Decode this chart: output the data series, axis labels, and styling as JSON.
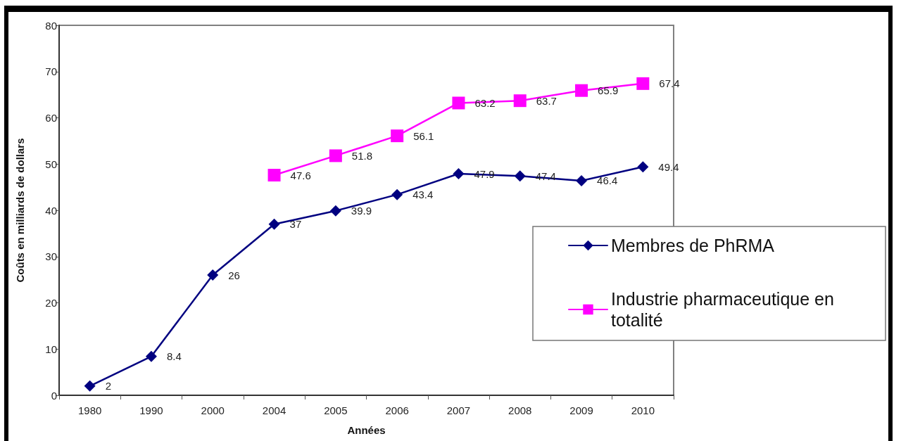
{
  "chart_data": {
    "type": "line",
    "xlabel": "Années",
    "ylabel": "Coûts en milliards de dollars",
    "categories": [
      "1980",
      "1990",
      "2000",
      "2004",
      "2005",
      "2006",
      "2007",
      "2008",
      "2009",
      "2010"
    ],
    "series": [
      {
        "name": "Membres de PhRMA",
        "color": "#000080",
        "marker": "diamond",
        "values": [
          2,
          8.4,
          26,
          37,
          39.9,
          43.4,
          47.9,
          47.4,
          46.4,
          49.4
        ]
      },
      {
        "name": "Industrie pharmaceutique en totalité",
        "color": "#ff00ff",
        "marker": "square",
        "values": [
          null,
          null,
          null,
          47.6,
          51.8,
          56.1,
          63.2,
          63.7,
          65.9,
          67.4
        ]
      }
    ],
    "ylim": [
      0,
      80
    ],
    "yticks": [
      0,
      10,
      20,
      30,
      40,
      50,
      60,
      70,
      80
    ],
    "legend": "right",
    "data_labels": true
  }
}
